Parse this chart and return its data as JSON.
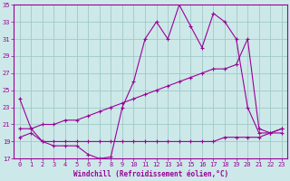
{
  "xlabel": "Windchill (Refroidissement éolien,°C)",
  "bg_color": "#cde8e8",
  "grid_color": "#a0c8c8",
  "line_color": "#990099",
  "x_values": [
    0,
    1,
    2,
    3,
    4,
    5,
    6,
    7,
    8,
    9,
    10,
    11,
    12,
    13,
    14,
    15,
    16,
    17,
    18,
    19,
    20,
    21,
    22,
    23
  ],
  "line_flat": [
    19.5,
    20.0,
    19.0,
    19.0,
    19.0,
    19.0,
    19.0,
    19.0,
    19.0,
    19.0,
    19.0,
    19.0,
    19.0,
    19.0,
    19.0,
    19.0,
    19.0,
    19.0,
    19.5,
    19.5,
    19.5,
    19.5,
    20.0,
    20.0
  ],
  "line_diag": [
    20.5,
    20.5,
    21.0,
    21.0,
    21.5,
    21.5,
    22.0,
    22.5,
    23.0,
    23.5,
    24.0,
    24.5,
    25.0,
    25.5,
    26.0,
    26.5,
    27.0,
    27.5,
    27.5,
    28.0,
    31.0,
    20.5,
    20.0,
    20.5
  ],
  "line_spiky": [
    24.0,
    20.5,
    19.0,
    18.5,
    18.5,
    18.5,
    17.5,
    17.0,
    17.2,
    23.0,
    26.0,
    31.0,
    33.0,
    31.0,
    35.0,
    32.5,
    30.0,
    34.0,
    33.0,
    31.0,
    23.0,
    20.0,
    20.0,
    20.5
  ],
  "ylim": [
    17,
    35
  ],
  "xlim": [
    -0.5,
    23.5
  ],
  "yticks": [
    17,
    19,
    21,
    23,
    25,
    27,
    29,
    31,
    33,
    35
  ],
  "xticks": [
    0,
    1,
    2,
    3,
    4,
    5,
    6,
    7,
    8,
    9,
    10,
    11,
    12,
    13,
    14,
    15,
    16,
    17,
    18,
    19,
    20,
    21,
    22,
    23
  ]
}
